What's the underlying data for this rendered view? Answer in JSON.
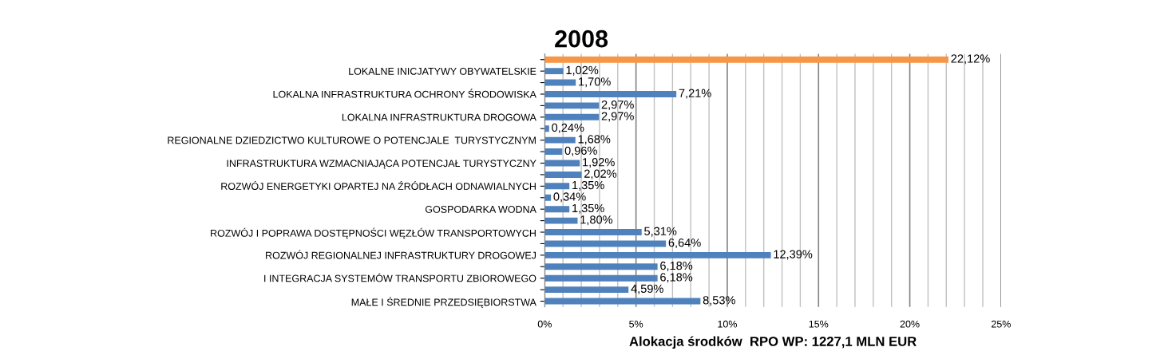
{
  "chart_data": {
    "type": "bar",
    "orientation": "horizontal",
    "title": "2008",
    "xlabel": "Alokacja środków  RPO WP: 1227,1 MLN EUR",
    "categories": [
      null,
      "LOKALNE INICJATYWY OBYWATELSKIE",
      null,
      "LOKALNA INFRASTRUKTURA OCHRONY ŚRODOWISKA",
      null,
      "LOKALNA INFRASTRUKTURA DROGOWA",
      null,
      "REGIONALNE DZIEDZICTWO KULTUROWE O POTENCJALE  TURYSTYCZNYM",
      null,
      "INFRASTRUKTURA WZMACNIAJĄCA POTENCJAŁ TURYSTYCZNY",
      null,
      "ROZWÓJ ENERGETYKI OPARTEJ NA ŹRÓDŁACH ODNAWIALNYCH",
      null,
      "GOSPODARKA WODNA",
      null,
      "ROZWÓJ I POPRAWA DOSTĘPNOŚCI WĘZŁÓW TRANSPORTOWYCH",
      null,
      "ROZWÓJ REGIONALNEJ INFRASTRUKTURY DROGOWEJ",
      null,
      "I INTEGRACJA SYSTEMÓW TRANSPORTU ZBIOROWEGO",
      null,
      "MAŁE I ŚREDNIE PRZEDSIĘBIORSTWA"
    ],
    "values": [
      22.12,
      1.02,
      1.7,
      7.21,
      2.97,
      2.97,
      0.24,
      1.68,
      0.96,
      1.92,
      2.02,
      1.35,
      0.34,
      1.35,
      1.8,
      5.31,
      6.64,
      12.39,
      6.18,
      6.18,
      4.59,
      8.53
    ],
    "value_labels": [
      "22,12%",
      "1,02%",
      "1,70%",
      "7,21%",
      "2,97%",
      "2,97%",
      "0,24%",
      "1,68%",
      "0,96%",
      "1,92%",
      "2,02%",
      "1,35%",
      "0,34%",
      "1,35%",
      "1,80%",
      "5,31%",
      "6,64%",
      "12,39%",
      "6,18%",
      "6,18%",
      "4,59%",
      "8,53%"
    ],
    "colors": [
      "#f79646",
      "#4f81bd",
      "#4f81bd",
      "#4f81bd",
      "#4f81bd",
      "#4f81bd",
      "#4f81bd",
      "#4f81bd",
      "#4f81bd",
      "#4f81bd",
      "#4f81bd",
      "#4f81bd",
      "#4f81bd",
      "#4f81bd",
      "#4f81bd",
      "#4f81bd",
      "#4f81bd",
      "#4f81bd",
      "#4f81bd",
      "#4f81bd",
      "#4f81bd",
      "#4f81bd"
    ],
    "xlim": [
      0,
      25
    ],
    "xticks": [
      {
        "value": 0,
        "label": "0%"
      },
      {
        "value": 1,
        "label": null
      },
      {
        "value": 2,
        "label": null
      },
      {
        "value": 3,
        "label": null
      },
      {
        "value": 4,
        "label": null
      },
      {
        "value": 5,
        "label": "5%"
      },
      {
        "value": 6,
        "label": null
      },
      {
        "value": 7,
        "label": null
      },
      {
        "value": 8,
        "label": null
      },
      {
        "value": 9,
        "label": null
      },
      {
        "value": 10,
        "label": "10%"
      },
      {
        "value": 11,
        "label": null
      },
      {
        "value": 12,
        "label": null
      },
      {
        "value": 13,
        "label": null
      },
      {
        "value": 14,
        "label": null
      },
      {
        "value": 15,
        "label": "15%"
      },
      {
        "value": 16,
        "label": null
      },
      {
        "value": 17,
        "label": null
      },
      {
        "value": 18,
        "label": null
      },
      {
        "value": 19,
        "label": null
      },
      {
        "value": 20,
        "label": "20%"
      },
      {
        "value": 21,
        "label": null
      },
      {
        "value": 22,
        "label": null
      },
      {
        "value": 23,
        "label": null
      },
      {
        "value": 24,
        "label": null
      },
      {
        "value": 25,
        "label": "25%"
      }
    ],
    "grid": "x"
  }
}
